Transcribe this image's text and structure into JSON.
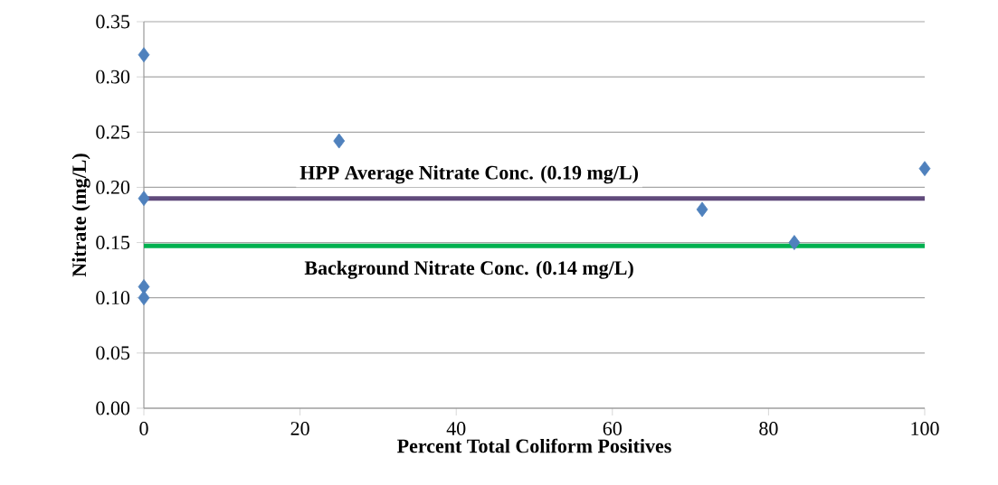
{
  "chart_data": {
    "type": "scatter",
    "xlabel": "Percent Total Coliform Positives",
    "ylabel": "Nitrate (mg/L)",
    "x": [
      0,
      0,
      0,
      0,
      25,
      71.5,
      83.3,
      100
    ],
    "values": [
      0.32,
      0.19,
      0.11,
      0.1,
      0.242,
      0.18,
      0.15,
      0.217
    ],
    "color": "#4f81bd",
    "marker": "diamond",
    "xlim": [
      0,
      100
    ],
    "xticks": [
      0,
      20,
      40,
      60,
      80,
      100
    ],
    "ylim": [
      0,
      0.35
    ],
    "yticks": [
      {
        "value": 0,
        "label": "0.00"
      },
      {
        "value": 0.05,
        "label": "0.05"
      },
      {
        "value": 0.1,
        "label": "0.10"
      },
      {
        "value": 0.15,
        "label": "0.15"
      },
      {
        "value": 0.2,
        "label": "0.20"
      },
      {
        "value": 0.25,
        "label": "0.25"
      },
      {
        "value": 0.3,
        "label": "0.30"
      },
      {
        "value": 0.35,
        "label": "0.35"
      }
    ],
    "grid": "y",
    "ref_lines": [
      {
        "axis": "y",
        "value": 0.19,
        "label": "HPP Average Nitrate Conc. (0.19 mg/L)",
        "color": "#604a7b"
      },
      {
        "axis": "y",
        "value": 0.147,
        "label": "Background Nitrate Conc. (0.14 mg/L)",
        "color": "#00b050"
      }
    ]
  }
}
